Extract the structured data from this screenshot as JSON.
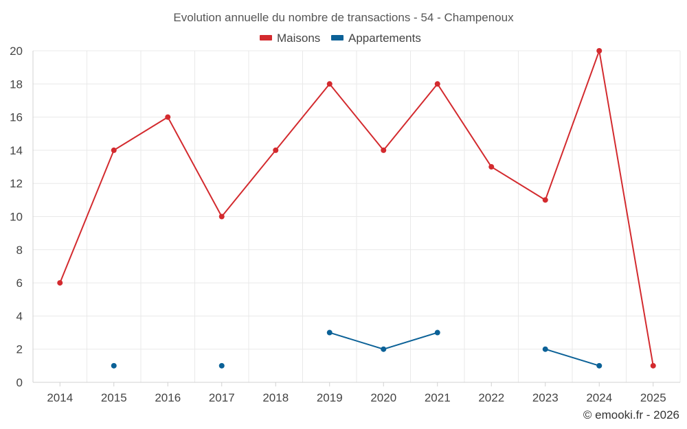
{
  "chart_data": {
    "type": "line",
    "title": "Evolution annuelle du nombre de transactions - 54 - Champenoux",
    "categories": [
      "2014",
      "2015",
      "2016",
      "2017",
      "2018",
      "2019",
      "2020",
      "2021",
      "2022",
      "2023",
      "2024",
      "2025"
    ],
    "series": [
      {
        "name": "Maisons",
        "color": "#d32a2e",
        "values": [
          6,
          14,
          16,
          10,
          14,
          18,
          14,
          18,
          13,
          11,
          20,
          1
        ]
      },
      {
        "name": "Appartements",
        "color": "#0b6197",
        "values": [
          null,
          1,
          null,
          1,
          null,
          3,
          2,
          3,
          null,
          2,
          1,
          null
        ]
      }
    ],
    "ylim": [
      0,
      20
    ],
    "yticks": [
      0,
      2,
      4,
      6,
      8,
      10,
      12,
      14,
      16,
      18,
      20
    ],
    "xlabel": "",
    "ylabel": "",
    "grid": true,
    "legend": "top-center"
  },
  "credit": "© emooki.fr - 2026"
}
